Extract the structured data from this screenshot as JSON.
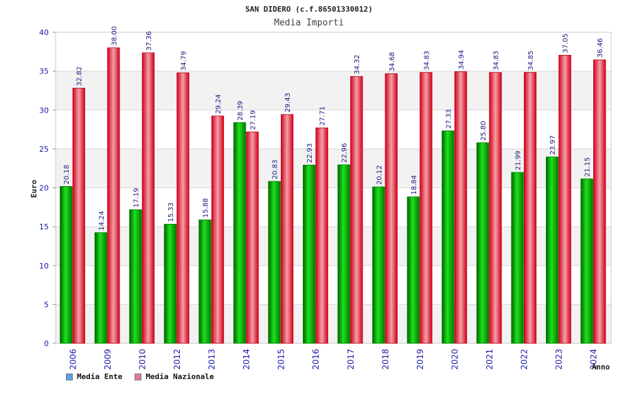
{
  "chart_data": {
    "type": "bar",
    "title": "SAN DIDERO (c.f.86501330012)",
    "subtitle": "Media Importi",
    "xlabel": "Anno",
    "ylabel": "Euro",
    "ylim": [
      0,
      40
    ],
    "yticks": [
      0,
      5,
      10,
      15,
      20,
      25,
      30,
      35,
      40
    ],
    "grid": true,
    "legend_position": "bottom-left",
    "categories": [
      "2006",
      "2009",
      "2010",
      "2012",
      "2013",
      "2014",
      "2015",
      "2016",
      "2017",
      "2018",
      "2019",
      "2020",
      "2021",
      "2022",
      "2023",
      "2024"
    ],
    "series": [
      {
        "name": "Media Ente",
        "color": "#00b000",
        "legend_color": "#5aa0e8",
        "values": [
          20.18,
          14.24,
          17.19,
          15.33,
          15.88,
          28.39,
          20.83,
          22.93,
          22.96,
          20.12,
          18.84,
          27.33,
          25.8,
          21.99,
          23.97,
          21.15
        ],
        "labels": [
          "20.18",
          "14.24",
          "17.19",
          "15.33",
          "15.88",
          "28.39",
          "20.83",
          "22.93",
          "22.96",
          "20.12",
          "18.84",
          "27.33",
          "25.80",
          "21.99",
          "23.97",
          "21.15"
        ]
      },
      {
        "name": "Media Nazionale",
        "color": "#e8001c",
        "legend_color": "#e07aa8",
        "values": [
          32.82,
          38.0,
          37.36,
          34.79,
          29.24,
          27.19,
          29.43,
          27.71,
          34.32,
          34.68,
          34.83,
          34.94,
          34.83,
          34.85,
          37.05,
          36.46
        ],
        "labels": [
          "32.82",
          "38.00",
          "37.36",
          "34.79",
          "29.24",
          "27.19",
          "29.43",
          "27.71",
          "34.32",
          "34.68",
          "34.83",
          "34.94",
          "34.83",
          "34.85",
          "37.05",
          "36.46"
        ]
      }
    ]
  }
}
